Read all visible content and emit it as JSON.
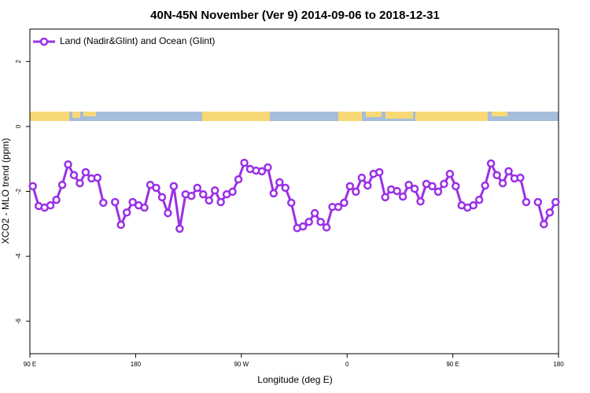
{
  "chart_data": {
    "type": "line",
    "title": "40N-45N November (Ver 9)   2014-09-06 to 2018-12-31",
    "x_label": "Longitude (deg E)",
    "y_label": "XCO2 - MLO trend (ppm)",
    "xlim": [
      90,
      540
    ],
    "ylim": [
      -7,
      3
    ],
    "xticks": [
      {
        "value": 90,
        "label": "90 E"
      },
      180,
      {
        "value": 270,
        "label": "90 W"
      },
      {
        "value": 360,
        "label": "0"
      },
      {
        "value": 450,
        "label": "90 E"
      },
      {
        "value": 540,
        "label": "180"
      }
    ],
    "yticks": [
      -6,
      -4,
      -2,
      0,
      2
    ],
    "legend": "topleft",
    "x": [
      92.5,
      97.5,
      102.5,
      107.5,
      112.5,
      117.5,
      122.5,
      127.5,
      132.5,
      137.5,
      142.5,
      147.5,
      152.5,
      157.5,
      162.5,
      167.5,
      172.5,
      177.5,
      182.5,
      187.5,
      192.5,
      197.5,
      202.5,
      207.5,
      212.5,
      217.5,
      222.5,
      227.5,
      232.5,
      237.5,
      242.5,
      247.5,
      252.5,
      257.5,
      262.5,
      267.5,
      272.5,
      277.5,
      282.5,
      287.5,
      292.5,
      297.5,
      302.5,
      307.5,
      312.5,
      317.5,
      322.5,
      327.5,
      332.5,
      337.5,
      342.5,
      347.5,
      352.5,
      357.5,
      362.5,
      367.5,
      372.5,
      377.5,
      382.5,
      387.5,
      392.5,
      397.5,
      402.5,
      407.5,
      412.5,
      417.5,
      422.5,
      427.5,
      432.5,
      437.5,
      442.5,
      447.5,
      452.5,
      457.5,
      462.5,
      467.5,
      472.5,
      477.5,
      482.5,
      487.5,
      492.5,
      497.5,
      502.5,
      507.5,
      512.5,
      517.5,
      522.5,
      527.5,
      532.5,
      537.5
    ],
    "series": [
      {
        "name": "Land (Nadir&Glint) and Ocean (Glint)",
        "color": "#9b30e6",
        "values": [
          -1.84,
          -2.45,
          -2.5,
          -2.43,
          -2.26,
          -1.8,
          -1.17,
          -1.5,
          -1.75,
          -1.41,
          -1.6,
          -1.58,
          -2.35,
          null,
          -2.33,
          -3.03,
          -2.65,
          -2.33,
          -2.43,
          -2.5,
          -1.8,
          -1.89,
          -2.18,
          -2.67,
          -1.84,
          -3.15,
          -2.09,
          -2.14,
          -1.89,
          -2.09,
          -2.28,
          -1.97,
          -2.33,
          -2.09,
          -2.01,
          -1.63,
          -1.12,
          -1.31,
          -1.36,
          -1.38,
          -1.26,
          -2.06,
          -1.72,
          -1.89,
          -2.35,
          -3.13,
          -3.08,
          -2.94,
          -2.67,
          -2.94,
          -3.11,
          -2.48,
          -2.48,
          -2.35,
          -1.84,
          -2.01,
          -1.58,
          -1.82,
          -1.46,
          -1.41,
          -2.18,
          -1.94,
          -1.99,
          -2.16,
          -1.8,
          -1.92,
          -2.31,
          -1.77,
          -1.84,
          -2.01,
          -1.77,
          -1.46,
          -1.84,
          -2.43,
          -2.5,
          -2.43,
          -2.26,
          -1.82,
          -1.14,
          -1.5,
          -1.75,
          -1.38,
          -1.6,
          -1.58,
          -2.33,
          null,
          -2.33,
          -3.01,
          -2.65,
          -2.33
        ]
      }
    ]
  }
}
